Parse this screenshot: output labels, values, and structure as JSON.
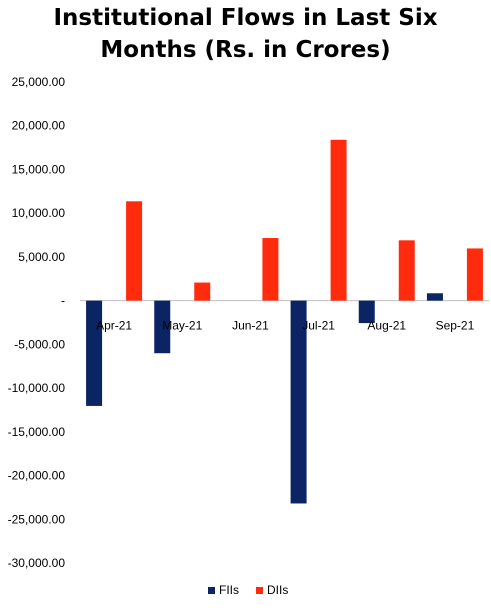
{
  "chart_data": {
    "type": "bar",
    "title_line1": "Institutional Flows in Last Six",
    "title_line2": "Months (Rs. in Crores)",
    "categories": [
      "Apr-21",
      "May-21",
      "Jun-21",
      "Jul-21",
      "Aug-21",
      "Sep-21"
    ],
    "series": [
      {
        "name": "FIIs",
        "color": "#0b2463",
        "values": [
          -12039,
          -6015,
          0,
          -23193,
          -2568,
          841
        ]
      },
      {
        "name": "DIIs",
        "color": "#ff2b0d",
        "values": [
          11358,
          2067,
          7158,
          18393,
          6897,
          5969
        ]
      }
    ],
    "ylim": [
      -30000,
      25000
    ],
    "yticks": [
      25000,
      20000,
      15000,
      10000,
      5000,
      0,
      -5000,
      -10000,
      -15000,
      -20000,
      -25000,
      -30000
    ],
    "ytick_labels": [
      "25,000.00",
      "20,000.00",
      "15,000.00",
      "10,000.00",
      "5,000.00",
      "-",
      "-5,000.00",
      "-10,000.00",
      "-15,000.00",
      "-20,000.00",
      "-25,000.00",
      "-30,000.00"
    ],
    "grid": false,
    "legend": "bottom"
  }
}
